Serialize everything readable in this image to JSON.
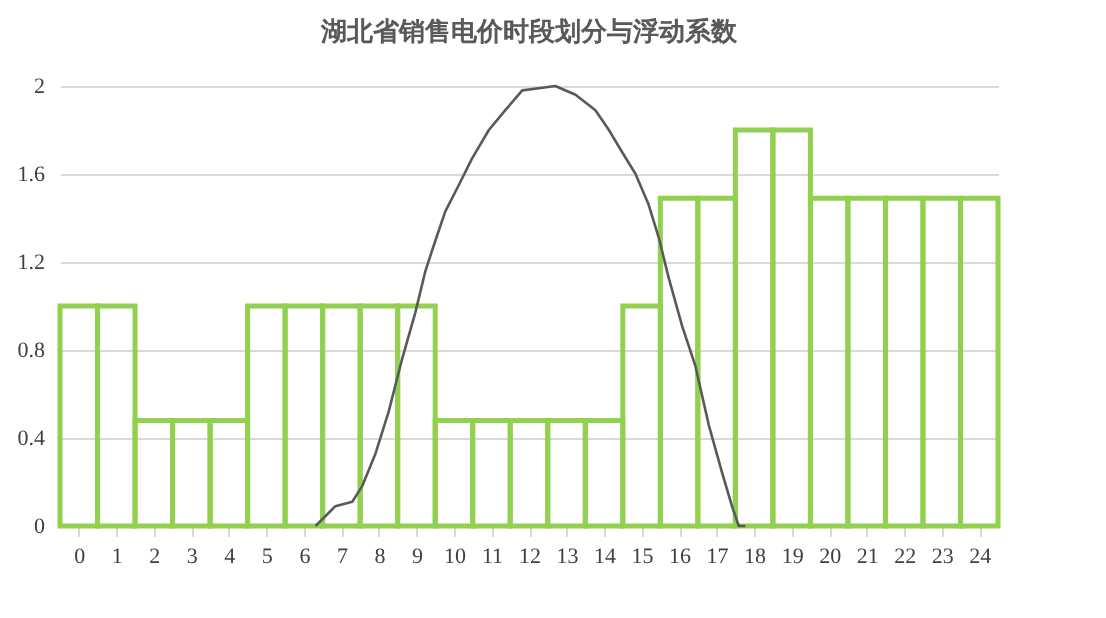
{
  "chart_data": {
    "type": "bar",
    "title": "湖北省销售电价时段划分与浮动系数",
    "x": [
      0,
      1,
      2,
      3,
      4,
      5,
      6,
      7,
      8,
      9,
      10,
      11,
      12,
      13,
      14,
      15,
      16,
      17,
      18,
      19,
      20,
      21,
      22,
      23,
      24
    ],
    "xlim": [
      -0.5,
      24.5
    ],
    "xticks": [
      0,
      1,
      2,
      3,
      4,
      5,
      6,
      7,
      8,
      9,
      10,
      11,
      12,
      13,
      14,
      15,
      16,
      17,
      18,
      19,
      20,
      21,
      22,
      23,
      24
    ],
    "series": [
      {
        "color": "#92d050",
        "values": [
          1,
          1,
          0.48,
          0.48,
          0.48,
          1,
          1,
          1,
          1,
          1,
          0.48,
          0.48,
          0.48,
          0.48,
          0.48,
          1,
          1.49,
          1.49,
          1.8,
          1.8,
          1.49,
          1.49,
          1.49,
          1.49,
          1.49
        ]
      },
      {
        "type": "line",
        "color": "#595959",
        "x": [
          6.31,
          6.84,
          7.29,
          7.55,
          7.91,
          8.26,
          8.62,
          8.97,
          9.24,
          9.51,
          9.77,
          10.13,
          10.48,
          10.93,
          11.37,
          11.82,
          12.26,
          12.7,
          13.24,
          13.77,
          14.13,
          14.48,
          14.84,
          15.19,
          15.46,
          15.72,
          16.08,
          16.43,
          16.79,
          17.15,
          17.41,
          17.59,
          17.77
        ],
        "values": [
          0,
          0.09,
          0.11,
          0.18,
          0.33,
          0.52,
          0.76,
          0.97,
          1.16,
          1.3,
          1.43,
          1.55,
          1.67,
          1.8,
          1.89,
          1.98,
          1.99,
          2,
          1.96,
          1.89,
          1.8,
          1.7,
          1.6,
          1.46,
          1.31,
          1.13,
          0.91,
          0.73,
          0.46,
          0.24,
          0.09,
          0,
          0
        ]
      }
    ],
    "ylim": [
      0,
      2
    ],
    "yticks": [
      0,
      0.4,
      0.8,
      1.2,
      1.6,
      2
    ],
    "grid": "y"
  }
}
